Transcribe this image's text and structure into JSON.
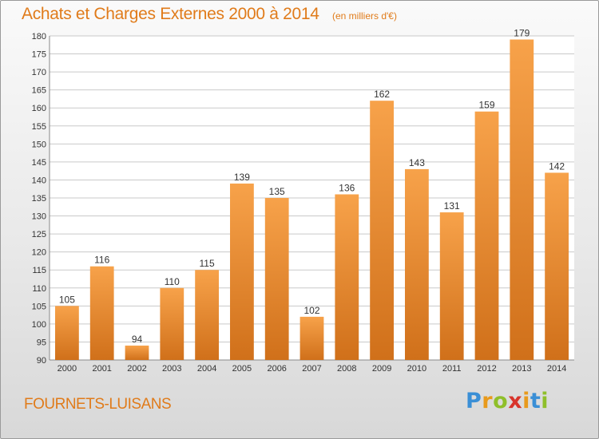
{
  "header": {
    "title": "Achats et Charges Externes 2000 à 2014",
    "unit": "(en milliers d'€)"
  },
  "footer": {
    "commune": "FOURNETS-LUISANS",
    "brand_letters": [
      "P",
      "r",
      "o",
      "x",
      "i",
      "t",
      "i"
    ],
    "brand_colors": [
      "#3a8fd6",
      "#e89a1c",
      "#8fbf2a",
      "#d8342b",
      "#e89a1c",
      "#3a8fd6",
      "#8fbf2a"
    ]
  },
  "colors": {
    "bar_light": "#f7a24a",
    "bar_dark": "#d0701a",
    "grid": "#c9c9c9",
    "plot_bg": "#ffffff"
  },
  "chart_data": {
    "type": "bar",
    "categories": [
      "2000",
      "2001",
      "2002",
      "2003",
      "2004",
      "2005",
      "2006",
      "2007",
      "2008",
      "2009",
      "2010",
      "2011",
      "2012",
      "2013",
      "2014"
    ],
    "values": [
      105,
      116,
      94,
      110,
      115,
      139,
      135,
      102,
      136,
      162,
      143,
      131,
      159,
      179,
      142
    ],
    "title": "Achats et Charges Externes 2000 à 2014",
    "subtitle": "(en milliers d'€)",
    "xlabel": "",
    "ylabel": "",
    "ylim": [
      90,
      180
    ],
    "yticks": [
      90,
      95,
      100,
      105,
      110,
      115,
      120,
      125,
      130,
      135,
      140,
      145,
      150,
      155,
      160,
      165,
      170,
      175,
      180
    ],
    "grid": true,
    "legend": "none"
  }
}
